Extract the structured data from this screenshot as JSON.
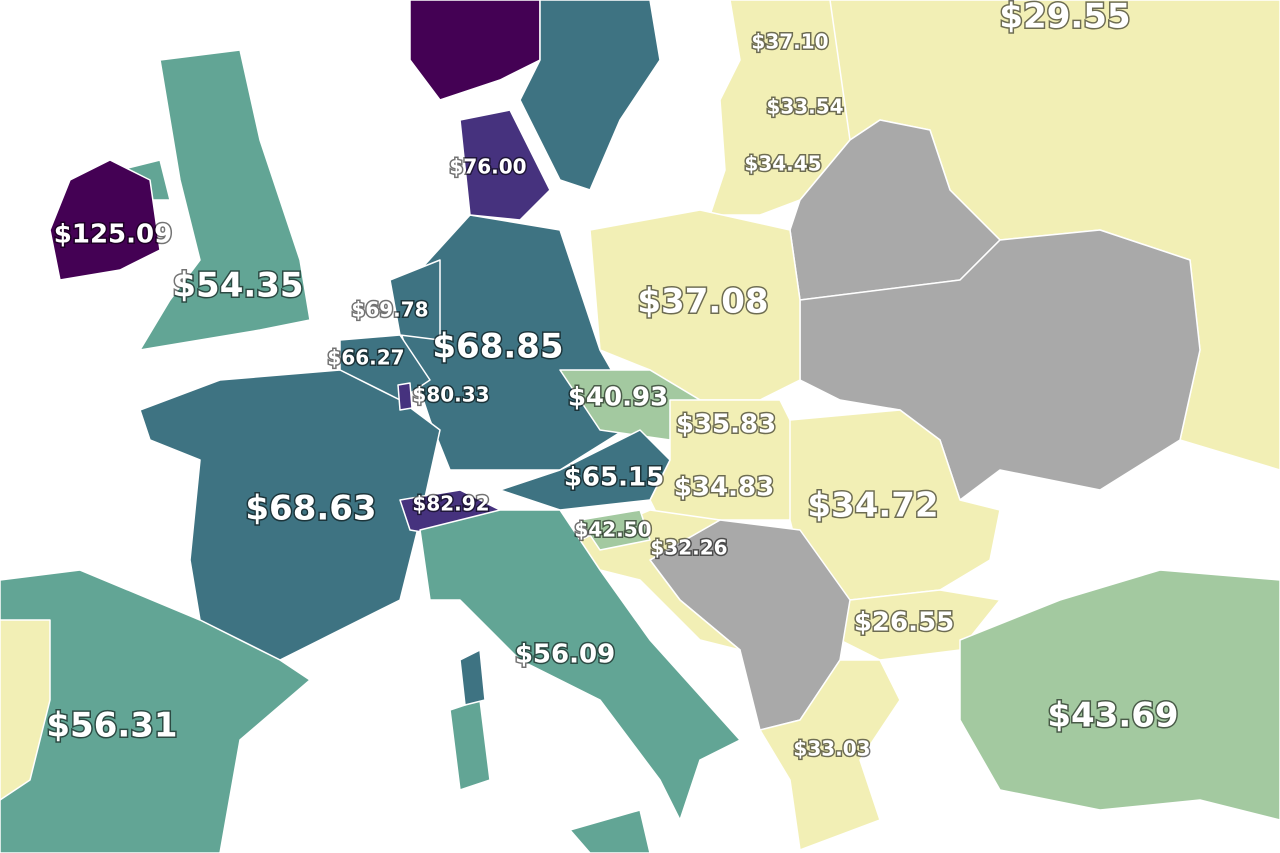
{
  "regions": [
    {
      "label": "$29.55"
    },
    {
      "label": "$37.10"
    },
    {
      "label": "$33.54"
    },
    {
      "label": "$34.45"
    },
    {
      "label": "$76.00"
    },
    {
      "label": "$125.09"
    },
    {
      "label": "$54.35"
    },
    {
      "label": "$37.08"
    },
    {
      "label": "$69.78"
    },
    {
      "label": "$68.85"
    },
    {
      "label": "$66.27"
    },
    {
      "label": "$80.33"
    },
    {
      "label": "$40.93"
    },
    {
      "label": "$35.83"
    },
    {
      "label": "$65.15"
    },
    {
      "label": "$34.83"
    },
    {
      "label": "$34.72"
    },
    {
      "label": "$68.63"
    },
    {
      "label": "$82.92"
    },
    {
      "label": "$42.50"
    },
    {
      "label": "$32.26"
    },
    {
      "label": "$26.55"
    },
    {
      "label": "$56.09"
    },
    {
      "label": "$43.69"
    },
    {
      "label": "$56.31"
    },
    {
      "label": "$33.03"
    }
  ]
}
